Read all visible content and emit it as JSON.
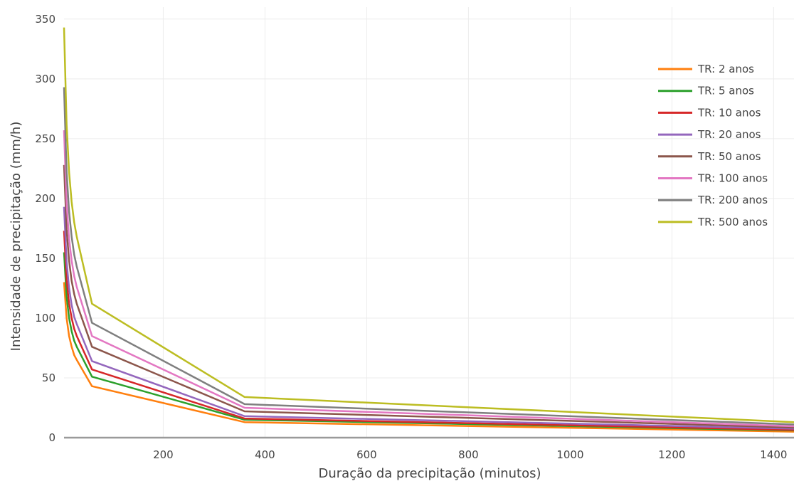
{
  "chart_data": {
    "type": "line",
    "xlabel": "Duração da precipitação (minutos)",
    "ylabel": "Intensidade de precipitação (mm/h)",
    "xlim": [
      5,
      1440
    ],
    "ylim": [
      0,
      360
    ],
    "x_ticks": [
      200,
      400,
      600,
      800,
      1000,
      1200,
      1400
    ],
    "x_tick_labels": [
      "200",
      "400",
      "600",
      "800",
      "1000",
      "1200",
      "1400"
    ],
    "y_ticks": [
      0,
      50,
      100,
      150,
      200,
      250,
      300,
      350
    ],
    "y_tick_labels": [
      "0",
      "50",
      "100",
      "150",
      "200",
      "250",
      "300",
      "350"
    ],
    "grid": true,
    "legend_position": "top-right",
    "x": [
      5,
      10,
      15,
      20,
      25,
      30,
      60,
      360,
      1440
    ],
    "series": [
      {
        "name": "TR: 2 anos",
        "color": "#ff7f0e",
        "values": [
          130,
          100,
          85,
          76,
          69,
          65,
          43,
          13,
          5
        ]
      },
      {
        "name": "TR: 5 anos",
        "color": "#2ca02c",
        "values": [
          155,
          118,
          100,
          89,
          81,
          76,
          51,
          15,
          6
        ]
      },
      {
        "name": "TR: 10 anos",
        "color": "#d62728",
        "values": [
          173,
          132,
          112,
          100,
          91,
          85,
          57,
          16,
          6.5
        ]
      },
      {
        "name": "TR: 20 anos",
        "color": "#9467bd",
        "values": [
          193,
          147,
          125,
          111,
          101,
          95,
          64,
          18,
          7.5
        ]
      },
      {
        "name": "TR: 50 anos",
        "color": "#8c564b",
        "values": [
          228,
          174,
          148,
          131,
          120,
          112,
          76,
          22,
          8.5
        ]
      },
      {
        "name": "TR: 100 anos",
        "color": "#e377c2",
        "values": [
          257,
          196,
          166,
          148,
          135,
          126,
          85,
          25,
          9.5
        ]
      },
      {
        "name": "TR: 200 anos",
        "color": "#7f7f7f",
        "values": [
          293,
          222,
          189,
          168,
          153,
          143,
          96,
          28,
          11
        ]
      },
      {
        "name": "TR: 500 anos",
        "color": "#bcbd22",
        "values": [
          343,
          262,
          222,
          197,
          180,
          168,
          112,
          34,
          13
        ]
      }
    ]
  }
}
